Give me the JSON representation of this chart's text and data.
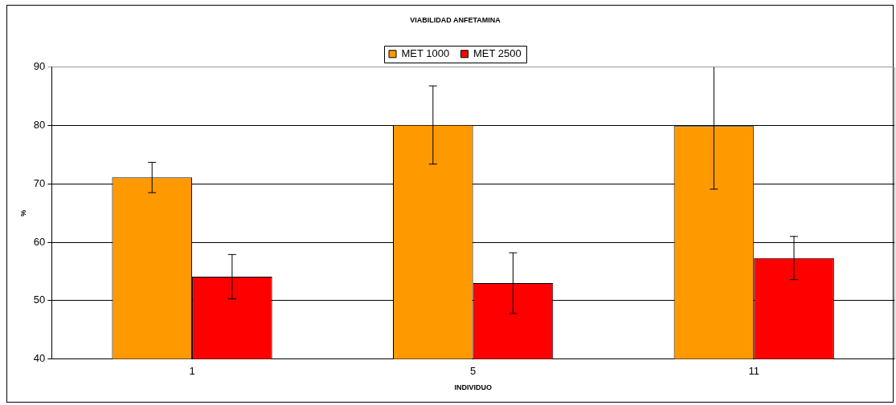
{
  "chart_data": {
    "type": "bar",
    "title": "VIABILIDAD ANFETAMINA",
    "xlabel": "INDIVIDUO",
    "ylabel": "%",
    "categories": [
      "1",
      "5",
      "11"
    ],
    "series": [
      {
        "name": "MET 1000",
        "color": "#ff9900",
        "values": [
          71.1,
          80.1,
          79.9
        ],
        "errors": [
          2.6,
          6.7,
          [
            69.1,
            90
          ]
        ]
      },
      {
        "name": "MET 2500",
        "color": "#ff0000",
        "values": [
          54.1,
          53.0,
          57.3
        ],
        "errors": [
          3.8,
          5.2,
          3.7
        ]
      }
    ],
    "ylim": [
      40,
      90
    ],
    "yticks": [
      40,
      50,
      60,
      70,
      80,
      90
    ],
    "grid": "y",
    "legend": "top"
  }
}
